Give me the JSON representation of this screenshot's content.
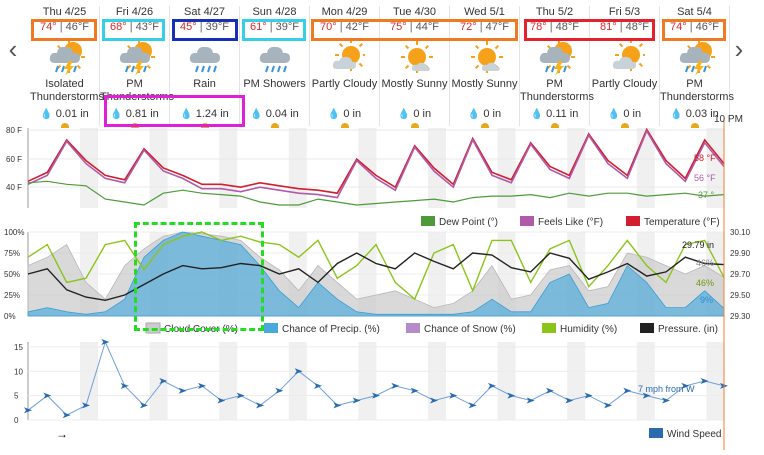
{
  "nav": {
    "prev_glyph": "‹",
    "next_glyph": "›"
  },
  "days": [
    {
      "date": "Thu 4/25",
      "hi": "74°",
      "lo": "46°F",
      "icon": "thunderstorm-icon",
      "cond1": "Isolated",
      "cond2": "Thunderstorms",
      "precip": "0.01 in"
    },
    {
      "date": "Fri 4/26",
      "hi": "68°",
      "lo": "43°F",
      "icon": "thunderstorm-icon",
      "cond1": "PM",
      "cond2": "Thunderstorms",
      "precip": "0.81 in"
    },
    {
      "date": "Sat 4/27",
      "hi": "45°",
      "lo": "39°F",
      "icon": "rain-icon",
      "cond1": "Rain",
      "cond2": "",
      "precip": "1.24 in"
    },
    {
      "date": "Sun 4/28",
      "hi": "61°",
      "lo": "39°F",
      "icon": "showers-icon",
      "cond1": "PM Showers",
      "cond2": "",
      "precip": "0.04 in"
    },
    {
      "date": "Mon 4/29",
      "hi": "70°",
      "lo": "42°F",
      "icon": "partly-cloudy-icon",
      "cond1": "Partly Cloudy",
      "cond2": "",
      "precip": "0 in"
    },
    {
      "date": "Tue 4/30",
      "hi": "75°",
      "lo": "44°F",
      "icon": "mostly-sunny-icon",
      "cond1": "Mostly Sunny",
      "cond2": "",
      "precip": "0 in"
    },
    {
      "date": "Wed 5/1",
      "hi": "72°",
      "lo": "47°F",
      "icon": "mostly-sunny-icon",
      "cond1": "Mostly Sunny",
      "cond2": "",
      "precip": "0 in"
    },
    {
      "date": "Thu 5/2",
      "hi": "78°",
      "lo": "48°F",
      "icon": "thunderstorm-icon",
      "cond1": "PM",
      "cond2": "Thunderstorms",
      "precip": "0.11 in"
    },
    {
      "date": "Fri 5/3",
      "hi": "81°",
      "lo": "48°F",
      "icon": "partly-cloudy-icon",
      "cond1": "Partly Cloudy",
      "cond2": "",
      "precip": "0 in"
    },
    {
      "date": "Sat 5/4",
      "hi": "74°",
      "lo": "46°F",
      "icon": "thunderstorm-icon",
      "cond1": "PM",
      "cond2": "Thunderstorms",
      "precip": "0.03 in"
    }
  ],
  "time_marker": "10 PM",
  "temp_panel": {
    "y_ticks": [
      "80 F",
      "60 F",
      "40 F"
    ],
    "current_labels": {
      "temperature": "58 °F",
      "feels_like": "56 °F",
      "dew_point": "37 °"
    },
    "legend": [
      "Dew Point (°)",
      "Feels Like (°F)",
      "Temperature (°F)"
    ],
    "colors": {
      "temperature": "#d11f2f",
      "feels_like": "#b05aa8",
      "dew_point": "#4e9a3a"
    }
  },
  "percent_panel": {
    "y_ticks_left": [
      "100%",
      "75%",
      "50%",
      "25%",
      "0%"
    ],
    "y_ticks_right": [
      "30.10",
      "29.90",
      "29.70",
      "29.50",
      "29.30"
    ],
    "current_labels": {
      "pressure": "29.79 in",
      "cloud": "46%",
      "humidity": "46%",
      "precip": "9%"
    },
    "legend": [
      "Cloud Cover (%)",
      "Chance of Precip. (%)",
      "Chance of Snow (%)",
      "Humidity (%)",
      "Pressure. (in)"
    ],
    "colors": {
      "cloud": "#cccccc",
      "precip": "#49a9dc",
      "snow": "#b48bc8",
      "humidity": "#8cc41c",
      "pressure": "#222222"
    }
  },
  "wind_panel": {
    "y_ticks": [
      "15",
      "10",
      "5",
      "0"
    ],
    "current_label": "7 mph from W",
    "legend": [
      "Wind Speed"
    ],
    "arrow_glyph": "→",
    "color": "#2a6bb0"
  },
  "chart_data": [
    {
      "type": "line",
      "title": "",
      "series": [
        {
          "name": "Temperature (°F)",
          "values": [
            46,
            52,
            74,
            60,
            50,
            47,
            68,
            55,
            50,
            44,
            44,
            42,
            45,
            43,
            41,
            40,
            38,
            61,
            50,
            42,
            70,
            55,
            44,
            75,
            52,
            47,
            72,
            56,
            50,
            78,
            60,
            50,
            81,
            60,
            48,
            74,
            58
          ]
        },
        {
          "name": "Feels Like (°F)",
          "values": [
            44,
            50,
            73,
            58,
            48,
            45,
            67,
            53,
            48,
            41,
            41,
            39,
            42,
            40,
            38,
            37,
            35,
            60,
            48,
            40,
            69,
            53,
            42,
            74,
            50,
            45,
            71,
            54,
            48,
            77,
            58,
            48,
            80,
            58,
            46,
            72,
            56
          ]
        },
        {
          "name": "Dew Point (°)",
          "values": [
            45,
            46,
            44,
            43,
            34,
            32,
            30,
            38,
            40,
            38,
            37,
            36,
            32,
            30,
            30,
            34,
            32,
            30,
            31,
            32,
            33,
            34,
            32,
            35,
            36,
            36,
            37,
            35,
            38,
            36,
            38,
            38,
            36,
            37,
            38,
            36,
            37
          ]
        }
      ],
      "ylim": [
        30,
        80
      ]
    },
    {
      "type": "area",
      "series": [
        {
          "name": "Cloud Cover (%)",
          "values": [
            60,
            70,
            85,
            40,
            20,
            60,
            80,
            95,
            100,
            98,
            95,
            90,
            70,
            55,
            30,
            60,
            40,
            20,
            25,
            30,
            20,
            10,
            15,
            30,
            60,
            20,
            25,
            55,
            60,
            30,
            35,
            75,
            70,
            60,
            50,
            60,
            46
          ]
        },
        {
          "name": "Chance of Precip. (%)",
          "values": [
            5,
            10,
            5,
            2,
            5,
            20,
            70,
            90,
            100,
            95,
            90,
            85,
            60,
            30,
            10,
            40,
            20,
            5,
            2,
            2,
            2,
            2,
            2,
            5,
            20,
            5,
            5,
            40,
            50,
            10,
            15,
            60,
            40,
            10,
            10,
            30,
            9
          ]
        },
        {
          "name": "Chance of Snow (%)",
          "values": [
            0,
            0,
            0,
            0,
            0,
            0,
            0,
            0,
            0,
            0,
            0,
            0,
            0,
            0,
            0,
            0,
            0,
            0,
            0,
            0,
            0,
            0,
            0,
            0,
            0,
            0,
            0,
            0,
            0,
            0,
            0,
            0,
            0,
            0,
            0,
            0,
            0
          ]
        },
        {
          "name": "Humidity (%)",
          "values": [
            70,
            85,
            40,
            45,
            85,
            90,
            55,
            85,
            95,
            100,
            90,
            95,
            88,
            85,
            70,
            90,
            45,
            60,
            85,
            40,
            20,
            75,
            85,
            30,
            90,
            90,
            40,
            80,
            90,
            35,
            60,
            90,
            60,
            40,
            85,
            90,
            46
          ]
        },
        {
          "name": "Pressure. (in)",
          "values": [
            29.7,
            29.75,
            29.55,
            29.48,
            29.45,
            29.5,
            29.6,
            29.7,
            29.78,
            29.75,
            29.76,
            29.8,
            29.78,
            29.7,
            29.75,
            29.62,
            29.8,
            29.9,
            29.8,
            29.75,
            29.9,
            29.82,
            29.75,
            29.9,
            29.88,
            29.76,
            29.72,
            29.9,
            29.85,
            29.65,
            29.72,
            29.8,
            29.68,
            29.72,
            29.86,
            29.8,
            29.79
          ]
        }
      ],
      "ylim": [
        0,
        100
      ],
      "ylim_right": [
        29.3,
        30.1
      ]
    },
    {
      "type": "line",
      "series": [
        {
          "name": "Wind Speed",
          "values": [
            2,
            5,
            1,
            3,
            16,
            7,
            3,
            8,
            6,
            7,
            4,
            5,
            3,
            6,
            10,
            7,
            3,
            4,
            5,
            7,
            6,
            4,
            5,
            3,
            7,
            5,
            4,
            6,
            4,
            5,
            3,
            6,
            5,
            4,
            7,
            8,
            7
          ]
        }
      ],
      "ylim": [
        0,
        16
      ]
    }
  ]
}
